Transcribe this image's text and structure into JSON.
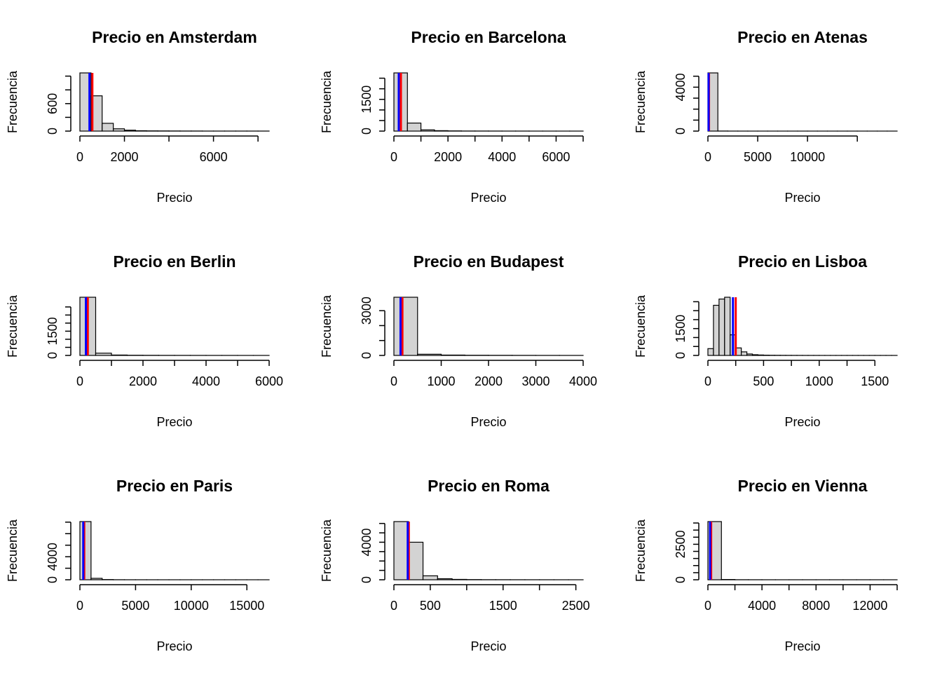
{
  "colors": {
    "bar_fill": "#d3d3d3",
    "bar_stroke": "#000000",
    "mean_line": "#ff0000",
    "median_line": "#0000ff"
  },
  "chart_data": [
    {
      "type": "histogram",
      "title": "Precio en Amsterdam",
      "xlabel": "Precio",
      "ylabel": "Frecuencia",
      "breaks": [
        0,
        500,
        1000,
        1500,
        2000,
        2500,
        3000,
        3500,
        4000,
        4500,
        5000,
        5500,
        6000,
        6500,
        7000,
        7500,
        8000,
        8500
      ],
      "counts": [
        1270,
        770,
        170,
        50,
        20,
        8,
        5,
        4,
        3,
        2,
        2,
        1,
        1,
        1,
        1,
        1,
        1
      ],
      "xlim": [
        0,
        8500
      ],
      "ylim": [
        0,
        1270
      ],
      "x_ticks": [
        0,
        2000,
        4000,
        6000,
        8000
      ],
      "x_tick_labels": [
        "0",
        "2000",
        "",
        "6000",
        ""
      ],
      "y_ticks": [
        0,
        300,
        600,
        900,
        1200
      ],
      "y_tick_labels": [
        "0",
        "",
        "600",
        "",
        ""
      ],
      "mean": 560,
      "median": 430
    },
    {
      "type": "histogram",
      "title": "Precio en Barcelona",
      "xlabel": "Precio",
      "ylabel": "Frecuencia",
      "breaks": [
        0,
        500,
        1000,
        1500,
        2000,
        2500,
        3000,
        3500,
        4000,
        4500,
        5000,
        5500,
        6000,
        6500,
        7000
      ],
      "counts": [
        2750,
        380,
        60,
        20,
        10,
        5,
        4,
        3,
        2,
        2,
        1,
        1,
        1,
        1
      ],
      "xlim": [
        0,
        7000
      ],
      "ylim": [
        0,
        2750
      ],
      "x_ticks": [
        0,
        1000,
        2000,
        3000,
        4000,
        5000,
        6000,
        7000
      ],
      "x_tick_labels": [
        "0",
        "",
        "2000",
        "",
        "4000",
        "",
        "6000",
        ""
      ],
      "y_ticks": [
        0,
        500,
        1000,
        1500,
        2000,
        2500
      ],
      "y_tick_labels": [
        "0",
        "",
        "",
        "1500",
        "",
        ""
      ],
      "mean": 260,
      "median": 180
    },
    {
      "type": "histogram",
      "title": "Precio en Atenas",
      "xlabel": "Precio",
      "ylabel": "Frecuencia",
      "breaks": [
        0,
        1000,
        2000,
        3000,
        4000,
        5000,
        6000,
        7000,
        8000,
        9000,
        10000,
        11000,
        12000,
        13000,
        14000,
        15000,
        16000,
        17000,
        18000,
        19000
      ],
      "counts": [
        5300,
        8,
        3,
        2,
        1,
        1,
        1,
        1,
        1,
        1,
        1,
        1,
        1,
        1,
        1,
        1,
        1,
        1,
        1
      ],
      "xlim": [
        0,
        19000
      ],
      "ylim": [
        0,
        5300
      ],
      "x_ticks": [
        0,
        5000,
        10000,
        15000
      ],
      "x_tick_labels": [
        "0",
        "5000",
        "10000",
        ""
      ],
      "y_ticks": [
        0,
        1000,
        2000,
        3000,
        4000,
        5000
      ],
      "y_tick_labels": [
        "0",
        "",
        "",
        "",
        "4000",
        ""
      ],
      "mean": 110,
      "median": 70
    },
    {
      "type": "histogram",
      "title": "Precio en Berlin",
      "xlabel": "Precio",
      "ylabel": "Frecuencia",
      "breaks": [
        0,
        500,
        1000,
        1500,
        2000,
        2500,
        3000,
        3500,
        4000,
        4500,
        5000,
        5500,
        6000
      ],
      "counts": [
        3600,
        140,
        25,
        12,
        8,
        5,
        4,
        3,
        2,
        2,
        1,
        1
      ],
      "xlim": [
        0,
        6000
      ],
      "ylim": [
        0,
        3600
      ],
      "x_ticks": [
        0,
        1000,
        2000,
        3000,
        4000,
        5000,
        6000
      ],
      "x_tick_labels": [
        "0",
        "",
        "2000",
        "",
        "4000",
        "",
        "6000"
      ],
      "y_ticks": [
        0,
        500,
        1000,
        1500,
        2000,
        2500,
        3000
      ],
      "y_tick_labels": [
        "0",
        "",
        "",
        "1500",
        "",
        "",
        ""
      ],
      "mean": 250,
      "median": 190
    },
    {
      "type": "histogram",
      "title": "Precio en Budapest",
      "xlabel": "Precio",
      "ylabel": "Frecuencia",
      "breaks": [
        0,
        500,
        1000,
        1500,
        2000,
        2500,
        3000,
        3500,
        4000
      ],
      "counts": [
        3900,
        80,
        25,
        12,
        8,
        5,
        3,
        2
      ],
      "xlim": [
        0,
        4000
      ],
      "ylim": [
        0,
        3900
      ],
      "x_ticks": [
        0,
        1000,
        2000,
        3000,
        4000
      ],
      "x_tick_labels": [
        "0",
        "1000",
        "2000",
        "3000",
        "4000"
      ],
      "y_ticks": [
        0,
        1000,
        2000,
        3000
      ],
      "y_tick_labels": [
        "0",
        "",
        "",
        "3000"
      ],
      "mean": 180,
      "median": 140
    },
    {
      "type": "histogram",
      "title": "Precio en Lisboa",
      "xlabel": "Precio",
      "ylabel": "Frecuencia",
      "breaks": [
        0,
        50,
        100,
        150,
        200,
        250,
        300,
        350,
        400,
        450,
        500,
        550,
        600,
        650,
        700,
        750,
        800,
        850,
        900,
        950,
        1000,
        1050,
        1100,
        1150,
        1200,
        1250,
        1300,
        1350,
        1400,
        1450,
        1500,
        1550,
        1600,
        1650,
        1700
      ],
      "counts": [
        380,
        2800,
        3150,
        3250,
        1150,
        420,
        200,
        80,
        40,
        25,
        15,
        10,
        8,
        6,
        5,
        4,
        3,
        2,
        2,
        2,
        1,
        1,
        1,
        1,
        1,
        1,
        1,
        1,
        1,
        1,
        1,
        1,
        1,
        1
      ],
      "bins_width_note": "",
      "xlim": [
        0,
        1700
      ],
      "ylim": [
        0,
        3250
      ],
      "x_ticks": [
        0,
        250,
        500,
        750,
        1000,
        1250,
        1500
      ],
      "x_tick_labels": [
        "0",
        "",
        "500",
        "",
        "1000",
        "",
        "1500"
      ],
      "y_ticks": [
        0,
        500,
        1000,
        1500,
        2000,
        2500,
        3000
      ],
      "y_tick_labels": [
        "0",
        "",
        "",
        "1500",
        "",
        "",
        ""
      ],
      "mean": 250,
      "median": 225
    },
    {
      "type": "histogram",
      "title": "Precio en Paris",
      "xlabel": "Precio",
      "ylabel": "Frecuencia",
      "breaks": [
        0,
        1000,
        2000,
        3000,
        4000,
        5000,
        6000,
        7000,
        8000,
        9000,
        10000,
        11000,
        12000,
        13000,
        14000,
        15000,
        16000,
        17000
      ],
      "counts": [
        10100,
        250,
        40,
        12,
        6,
        4,
        3,
        2,
        1,
        1,
        1,
        1,
        1,
        1,
        1,
        1,
        1
      ],
      "xlim": [
        0,
        17000
      ],
      "ylim": [
        0,
        10100
      ],
      "x_ticks": [
        0,
        5000,
        10000,
        15000
      ],
      "x_tick_labels": [
        "0",
        "5000",
        "10000",
        "15000"
      ],
      "y_ticks": [
        0,
        2000,
        4000,
        6000,
        8000,
        10000
      ],
      "y_tick_labels": [
        "0",
        "",
        "4000",
        "",
        "",
        ""
      ],
      "mean": 390,
      "median": 300
    },
    {
      "type": "histogram",
      "title": "Precio en Roma",
      "xlabel": "Precio",
      "ylabel": "Frecuencia",
      "breaks": [
        0,
        200,
        400,
        600,
        800,
        1000,
        1200,
        1400,
        1600,
        1800,
        2000,
        2200,
        2400,
        2600
      ],
      "counts": [
        6200,
        4000,
        420,
        110,
        40,
        20,
        10,
        8,
        5,
        4,
        3,
        2,
        1
      ],
      "xlim": [
        0,
        2600
      ],
      "ylim": [
        0,
        6200
      ],
      "x_ticks": [
        0,
        500,
        1000,
        1500,
        2000,
        2500
      ],
      "x_tick_labels": [
        "0",
        "500",
        "",
        "1500",
        "",
        "2500"
      ],
      "y_ticks": [
        0,
        1000,
        2000,
        3000,
        4000,
        5000,
        6000
      ],
      "y_tick_labels": [
        "0",
        "",
        "",
        "",
        "4000",
        "",
        ""
      ],
      "mean": 205,
      "median": 190
    },
    {
      "type": "histogram",
      "title": "Precio en Vienna",
      "xlabel": "Precio",
      "ylabel": "Frecuencia",
      "breaks": [
        0,
        1000,
        2000,
        3000,
        4000,
        5000,
        6000,
        7000,
        8000,
        9000,
        10000,
        11000,
        12000,
        13000,
        14000
      ],
      "counts": [
        4100,
        20,
        5,
        3,
        2,
        1,
        1,
        1,
        1,
        1,
        1,
        1,
        1,
        1
      ],
      "xlim": [
        0,
        14000
      ],
      "ylim": [
        0,
        4100
      ],
      "x_ticks": [
        0,
        2000,
        4000,
        6000,
        8000,
        10000,
        12000,
        14000
      ],
      "x_tick_labels": [
        "0",
        "",
        "4000",
        "",
        "8000",
        "",
        "12000",
        ""
      ],
      "y_ticks": [
        0,
        500,
        1000,
        1500,
        2000,
        2500,
        3000,
        3500,
        4000
      ],
      "y_tick_labels": [
        "0",
        "",
        "",
        "",
        "",
        "2500",
        "",
        "",
        ""
      ],
      "mean": 240,
      "median": 160
    }
  ]
}
